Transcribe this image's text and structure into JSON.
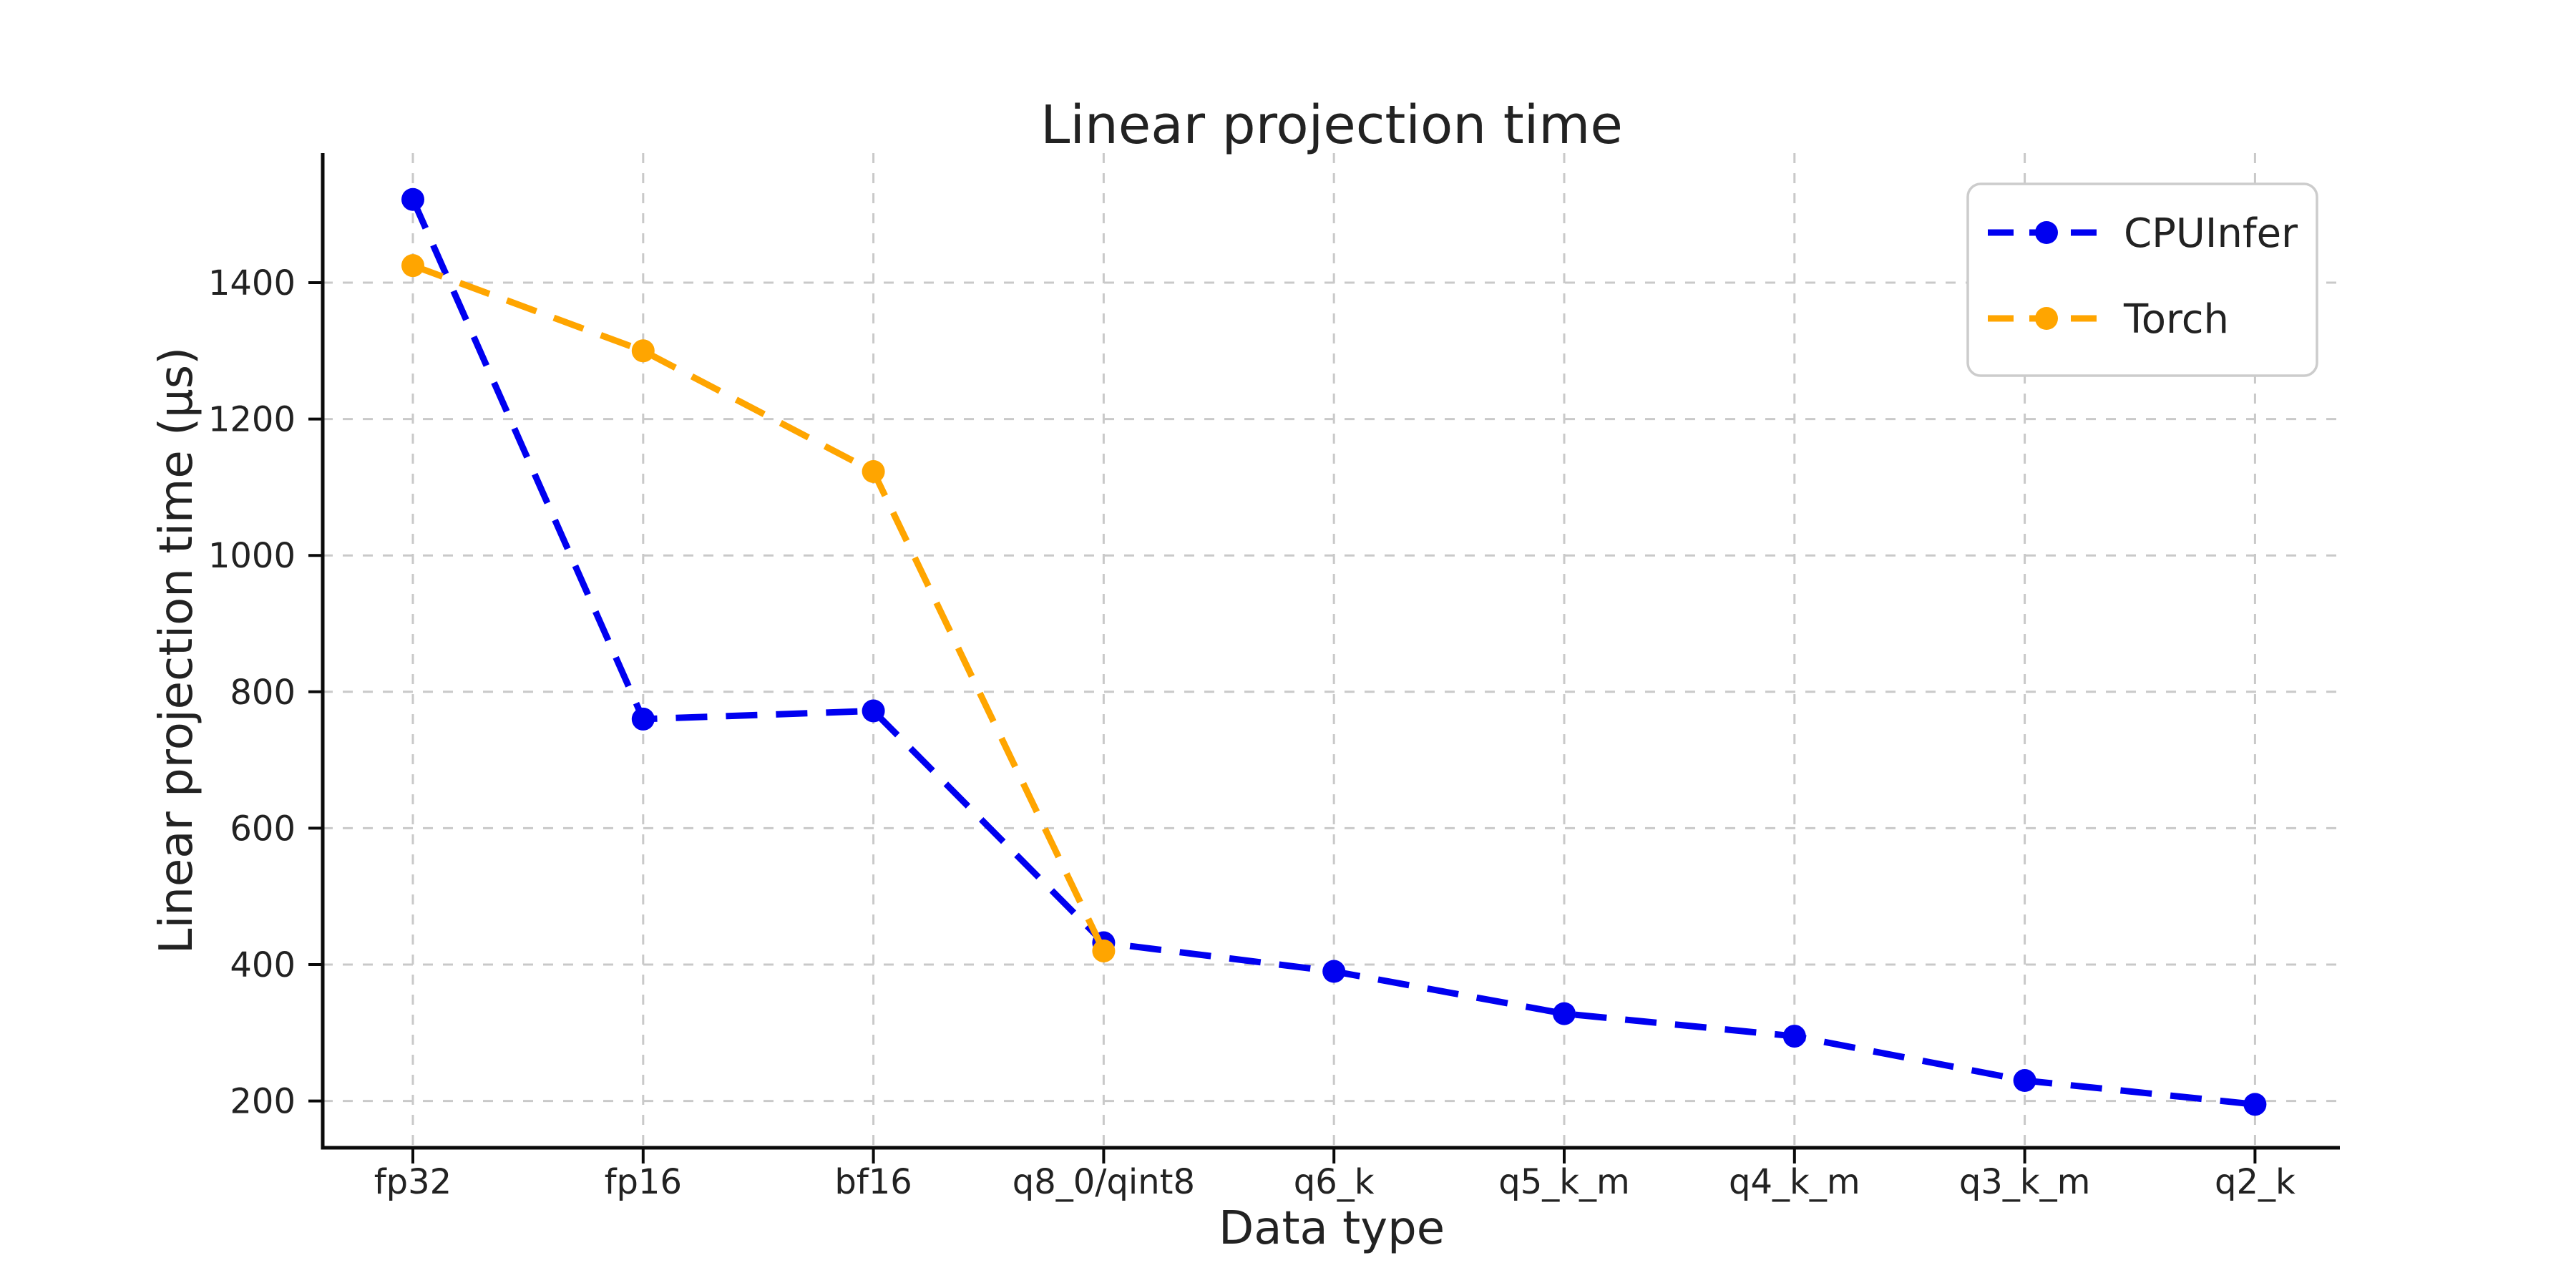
{
  "chart_data": {
    "type": "line",
    "title": "Linear projection time",
    "xlabel": "Data type",
    "ylabel": "Linear projection time (μs)",
    "categories": [
      "fp32",
      "fp16",
      "bf16",
      "q8_0/qint8",
      "q6_k",
      "q5_k_m",
      "q4_k_m",
      "q3_k_m",
      "q2_k"
    ],
    "series": [
      {
        "name": "CPUInfer",
        "color": "#0000f0",
        "values": [
          1522,
          760,
          772,
          432,
          390,
          328,
          295,
          230,
          195
        ]
      },
      {
        "name": "Torch",
        "color": "#ffa500",
        "values": [
          1425,
          1300,
          1123,
          420
        ]
      }
    ],
    "yticks": [
      200,
      400,
      600,
      800,
      1000,
      1200,
      1400
    ],
    "ylim": [
      130,
      1590
    ],
    "grid": true,
    "grid_style": "dashed",
    "legend_position": "upper right",
    "line_style": "dashed",
    "marker": "circle"
  },
  "colors": {
    "background": "#ffffff",
    "grid": "#c9c9c9",
    "spine": "#0a0a0a",
    "text": "#222222",
    "legend_border": "#cccccc",
    "legend_fill": "#ffffff"
  }
}
